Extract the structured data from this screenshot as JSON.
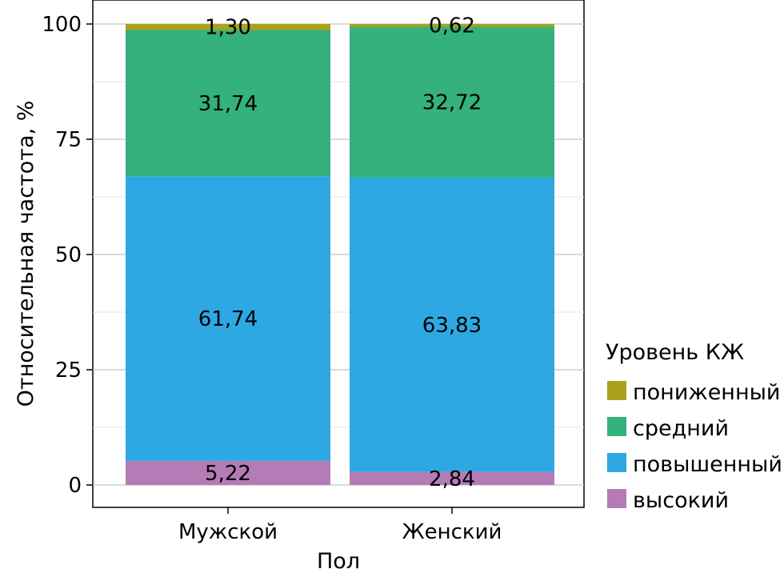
{
  "chart_data": {
    "type": "bar",
    "stacked": true,
    "xlabel": "Пол",
    "ylabel": "Относительная частота, %",
    "ylim": [
      0,
      100
    ],
    "yticks": [
      "0",
      "25",
      "50",
      "75",
      "100"
    ],
    "categories": [
      "Мужской",
      "Женский"
    ],
    "grid": true,
    "legend_position": "right",
    "legend_title": "Уровень КЖ",
    "series": [
      {
        "name": "высокий",
        "color": "#b57bb6",
        "values": [
          5.22,
          2.84
        ],
        "labels": [
          "5,22",
          "2,84"
        ]
      },
      {
        "name": "повышенный",
        "color": "#2ea8e2",
        "values": [
          61.74,
          63.83
        ],
        "labels": [
          "61,74",
          "63,83"
        ]
      },
      {
        "name": "средний",
        "color": "#35b17b",
        "values": [
          31.74,
          32.72
        ],
        "labels": [
          "31,74",
          "32,72"
        ]
      },
      {
        "name": "пониженный",
        "color": "#aba11c",
        "values": [
          1.3,
          0.62
        ],
        "labels": [
          "1,30",
          "0,62"
        ]
      }
    ],
    "legend_order": [
      "пониженный",
      "средний",
      "повышенный",
      "высокий"
    ]
  }
}
